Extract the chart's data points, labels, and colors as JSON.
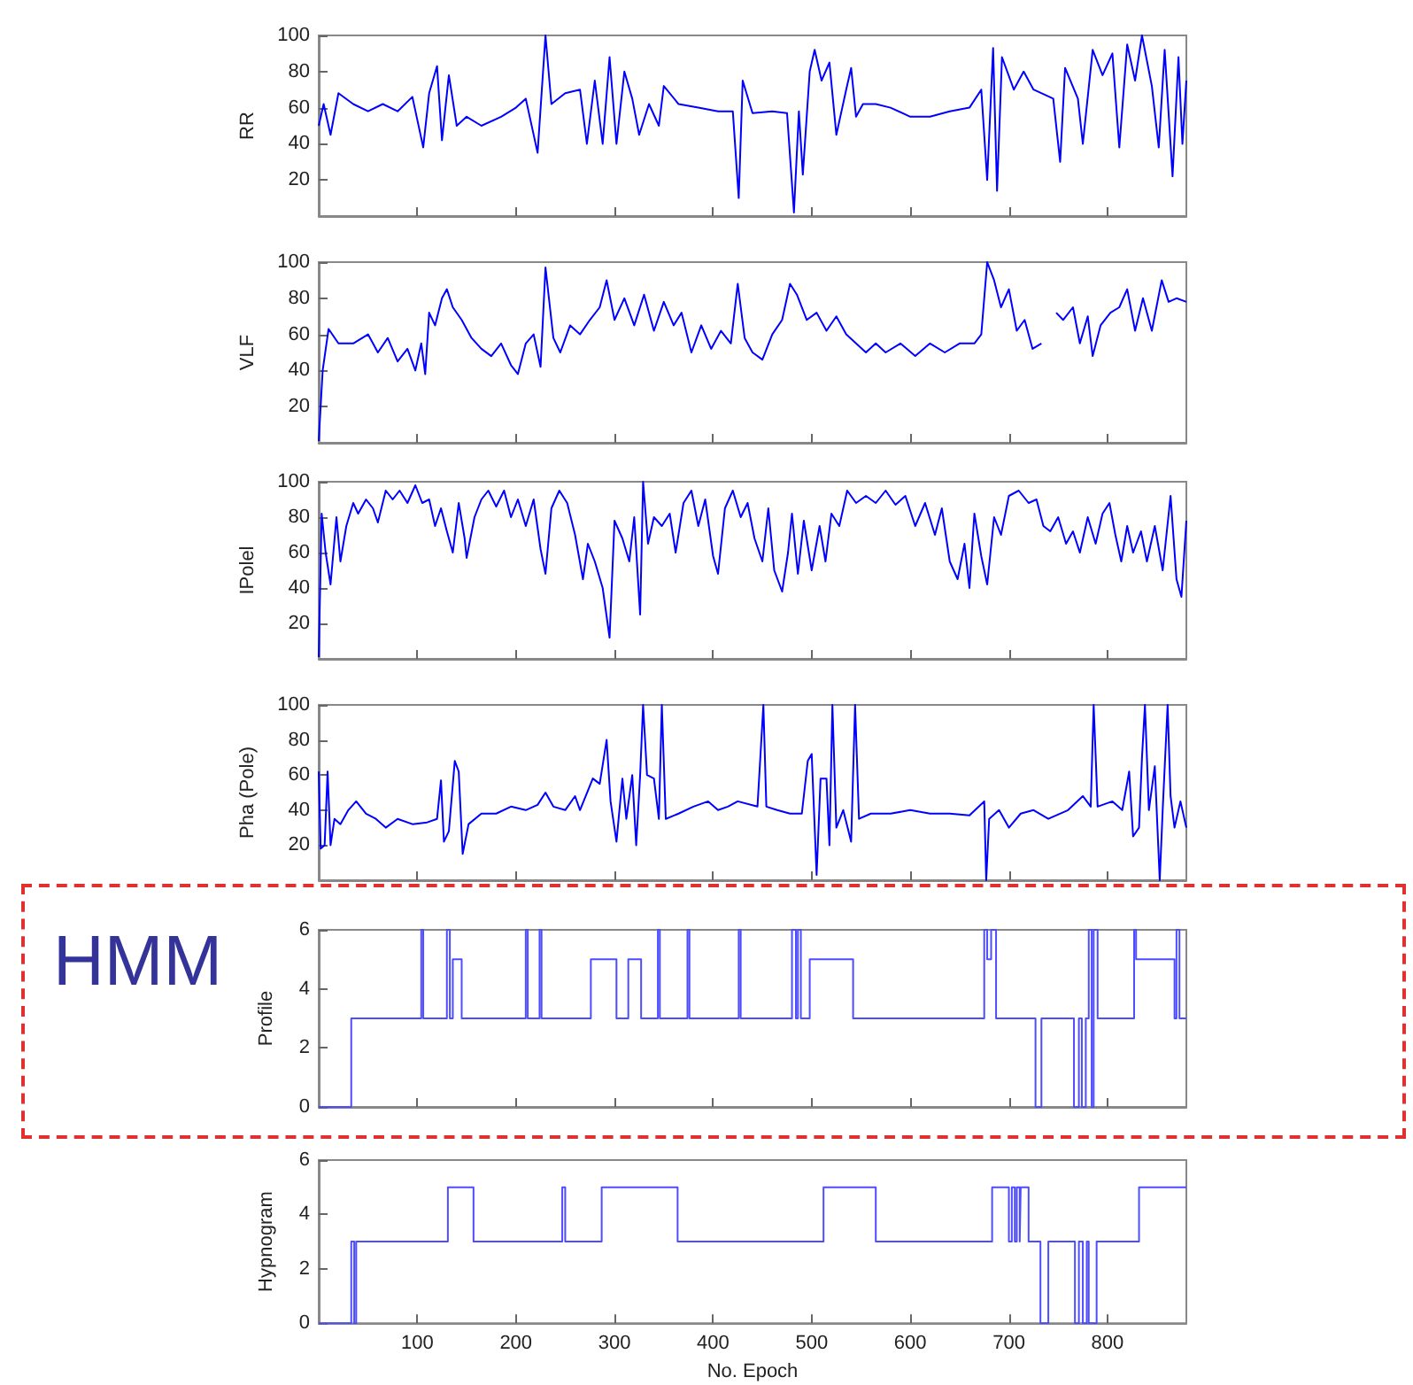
{
  "chart_data": [
    {
      "type": "line",
      "ylabel": "RR",
      "marker": "none",
      "color": "#0000ff",
      "xlim": [
        0,
        880
      ],
      "xticks": [
        100,
        200,
        300,
        400,
        500,
        600,
        700,
        800
      ],
      "ylim": [
        0,
        100
      ],
      "yticks": [
        20,
        40,
        60,
        80,
        100
      ],
      "tick_labels": "y",
      "x": [
        0,
        5,
        12,
        20,
        35,
        50,
        65,
        80,
        95,
        106,
        112,
        120,
        125,
        132,
        140,
        150,
        165,
        185,
        200,
        210,
        222,
        230,
        236,
        250,
        265,
        272,
        280,
        288,
        295,
        302,
        310,
        318,
        325,
        335,
        345,
        350,
        365,
        385,
        405,
        420,
        426,
        430,
        440,
        460,
        475,
        482,
        487,
        491,
        498,
        503,
        510,
        518,
        525,
        535,
        540,
        545,
        552,
        565,
        580,
        600,
        620,
        640,
        660,
        672,
        678,
        684,
        688,
        693,
        705,
        715,
        725,
        745,
        752,
        757,
        770,
        775,
        785,
        795,
        805,
        812,
        820,
        828,
        835,
        845,
        852,
        858,
        866,
        872,
        876,
        880
      ],
      "values": [
        50,
        62,
        45,
        68,
        62,
        58,
        62,
        58,
        66,
        38,
        68,
        83,
        42,
        78,
        50,
        55,
        50,
        55,
        60,
        65,
        35,
        100,
        62,
        68,
        70,
        40,
        75,
        40,
        88,
        40,
        80,
        65,
        45,
        62,
        50,
        72,
        62,
        60,
        58,
        58,
        10,
        75,
        57,
        58,
        57,
        2,
        58,
        23,
        80,
        92,
        75,
        85,
        45,
        70,
        82,
        55,
        62,
        62,
        60,
        55,
        55,
        58,
        60,
        70,
        20,
        93,
        14,
        88,
        70,
        80,
        70,
        65,
        30,
        82,
        65,
        40,
        92,
        78,
        90,
        38,
        95,
        75,
        100,
        72,
        38,
        92,
        22,
        88,
        40,
        75
      ]
    },
    {
      "type": "line",
      "ylabel": "VLF",
      "marker": "none",
      "color": "#0000ff",
      "xlim": [
        0,
        880
      ],
      "xticks": [
        100,
        200,
        300,
        400,
        500,
        600,
        700,
        800
      ],
      "ylim": [
        0,
        100
      ],
      "yticks": [
        20,
        40,
        60,
        80,
        100
      ],
      "tick_labels": "y",
      "x": [
        0,
        4,
        10,
        20,
        35,
        50,
        60,
        70,
        80,
        90,
        98,
        104,
        108,
        112,
        118,
        125,
        130,
        136,
        145,
        155,
        165,
        175,
        185,
        195,
        202,
        210,
        218,
        225,
        230,
        238,
        245,
        255,
        265,
        275,
        285,
        292,
        300,
        310,
        320,
        330,
        340,
        350,
        360,
        368,
        378,
        388,
        398,
        408,
        418,
        425,
        432,
        440,
        450,
        460,
        470,
        478,
        485,
        495,
        505,
        515,
        525,
        535,
        545,
        555,
        565,
        575,
        590,
        605,
        620,
        635,
        650,
        665,
        672,
        678,
        685,
        692,
        700,
        708,
        716,
        724,
        733,
        740,
        748,
        755,
        765,
        772,
        780,
        785,
        793,
        803,
        812,
        820,
        828,
        836,
        845,
        855,
        862,
        870,
        880
      ],
      "values": [
        1,
        40,
        63,
        55,
        55,
        60,
        50,
        58,
        45,
        52,
        40,
        55,
        38,
        72,
        65,
        80,
        85,
        75,
        68,
        58,
        52,
        48,
        55,
        43,
        38,
        55,
        60,
        42,
        97,
        58,
        50,
        65,
        60,
        68,
        75,
        90,
        68,
        80,
        65,
        82,
        62,
        78,
        65,
        72,
        50,
        65,
        52,
        62,
        55,
        88,
        58,
        50,
        46,
        60,
        68,
        88,
        82,
        68,
        72,
        62,
        70,
        60,
        55,
        50,
        55,
        50,
        55,
        48,
        55,
        50,
        55,
        55,
        60,
        100,
        90,
        75,
        85,
        62,
        68,
        52,
        55,
        null,
        72,
        68,
        75,
        55,
        70,
        48,
        65,
        72,
        75,
        85,
        62,
        80,
        62,
        90,
        78,
        80,
        78
      ]
    },
    {
      "type": "line",
      "ylabel": "IPolel",
      "marker": "none",
      "color": "#0000ff",
      "xlim": [
        0,
        880
      ],
      "xticks": [
        100,
        200,
        300,
        400,
        500,
        600,
        700,
        800
      ],
      "ylim": [
        0,
        100
      ],
      "yticks": [
        20,
        40,
        60,
        80,
        100
      ],
      "tick_labels": "y",
      "x": [
        0,
        3,
        7,
        12,
        18,
        22,
        28,
        35,
        40,
        48,
        55,
        60,
        68,
        75,
        82,
        90,
        98,
        105,
        112,
        118,
        124,
        130,
        136,
        142,
        148,
        150,
        158,
        165,
        172,
        180,
        188,
        195,
        202,
        210,
        218,
        225,
        230,
        236,
        244,
        252,
        260,
        268,
        273,
        280,
        288,
        295,
        300,
        308,
        315,
        320,
        326,
        329,
        334,
        340,
        348,
        356,
        362,
        370,
        378,
        385,
        392,
        400,
        405,
        412,
        420,
        428,
        435,
        442,
        450,
        456,
        462,
        470,
        476,
        480,
        486,
        492,
        500,
        508,
        514,
        520,
        528,
        536,
        545,
        555,
        565,
        575,
        585,
        595,
        605,
        615,
        625,
        632,
        640,
        648,
        655,
        660,
        665,
        672,
        678,
        685,
        692,
        700,
        710,
        720,
        728,
        735,
        742,
        750,
        758,
        765,
        772,
        780,
        788,
        795,
        802,
        808,
        814,
        820,
        826,
        834,
        840,
        848,
        856,
        864,
        870,
        875,
        880
      ],
      "values": [
        1,
        82,
        60,
        42,
        80,
        55,
        75,
        88,
        82,
        90,
        85,
        77,
        95,
        90,
        95,
        88,
        98,
        88,
        90,
        75,
        85,
        72,
        60,
        88,
        68,
        57,
        80,
        90,
        95,
        86,
        95,
        80,
        90,
        75,
        90,
        62,
        48,
        85,
        95,
        88,
        70,
        45,
        65,
        55,
        40,
        12,
        78,
        68,
        55,
        80,
        25,
        100,
        65,
        80,
        75,
        82,
        60,
        88,
        95,
        75,
        90,
        58,
        48,
        85,
        95,
        80,
        88,
        68,
        55,
        85,
        50,
        38,
        60,
        82,
        48,
        78,
        50,
        75,
        55,
        82,
        75,
        95,
        88,
        92,
        88,
        95,
        87,
        92,
        75,
        88,
        70,
        85,
        55,
        45,
        65,
        40,
        82,
        58,
        42,
        80,
        70,
        92,
        95,
        88,
        90,
        75,
        72,
        80,
        65,
        72,
        60,
        80,
        65,
        82,
        88,
        70,
        55,
        75,
        60,
        72,
        55,
        75,
        50,
        92,
        45,
        35,
        78
      ]
    },
    {
      "type": "line",
      "ylabel": "Pha (Pole)",
      "marker": "none",
      "color": "#0000ff",
      "xlim": [
        0,
        880
      ],
      "xticks": [
        100,
        200,
        300,
        400,
        500,
        600,
        700,
        800
      ],
      "ylim": [
        0,
        100
      ],
      "yticks": [
        20,
        40,
        60,
        80,
        100
      ],
      "tick_labels": "y",
      "x": [
        0,
        2,
        6,
        9,
        12,
        16,
        22,
        30,
        38,
        48,
        58,
        68,
        80,
        95,
        110,
        120,
        124,
        127,
        132,
        138,
        142,
        146,
        152,
        165,
        180,
        195,
        210,
        222,
        230,
        238,
        250,
        260,
        265,
        278,
        285,
        292,
        296,
        302,
        308,
        312,
        318,
        322,
        326,
        329,
        333,
        340,
        345,
        348,
        352,
        365,
        380,
        395,
        405,
        415,
        425,
        445,
        451,
        454,
        465,
        478,
        490,
        496,
        500,
        505,
        509,
        515,
        518,
        521,
        525,
        532,
        540,
        544,
        548,
        560,
        580,
        600,
        620,
        640,
        660,
        675,
        677,
        680,
        690,
        700,
        712,
        725,
        740,
        760,
        775,
        783,
        786,
        790,
        805,
        815,
        822,
        826,
        832,
        835,
        838,
        842,
        848,
        853,
        856,
        861,
        864,
        868,
        874,
        880
      ],
      "values": [
        62,
        18,
        20,
        62,
        20,
        35,
        32,
        40,
        45,
        38,
        35,
        30,
        35,
        32,
        33,
        35,
        57,
        22,
        28,
        68,
        62,
        15,
        32,
        38,
        38,
        42,
        40,
        43,
        50,
        42,
        40,
        48,
        40,
        58,
        55,
        80,
        45,
        22,
        58,
        35,
        60,
        20,
        60,
        100,
        60,
        58,
        35,
        100,
        35,
        38,
        42,
        45,
        40,
        42,
        45,
        42,
        100,
        42,
        40,
        38,
        38,
        68,
        72,
        3,
        58,
        58,
        20,
        100,
        30,
        40,
        22,
        100,
        35,
        38,
        38,
        40,
        38,
        38,
        37,
        45,
        0,
        35,
        40,
        30,
        38,
        40,
        35,
        40,
        48,
        42,
        100,
        42,
        45,
        40,
        62,
        25,
        30,
        70,
        100,
        40,
        65,
        0,
        40,
        100,
        48,
        30,
        45,
        30
      ]
    },
    {
      "type": "step",
      "ylabel": "Profile",
      "marker": "none",
      "color": "#4d4dff",
      "xlim": [
        0,
        880
      ],
      "xticks": [
        100,
        200,
        300,
        400,
        500,
        600,
        700,
        800
      ],
      "ylim": [
        0,
        6
      ],
      "yticks": [
        0,
        2,
        4,
        6
      ],
      "tick_labels": "y",
      "annotations": [
        "HMM"
      ],
      "x": [
        0,
        33,
        104,
        106,
        130,
        133,
        136,
        145,
        210,
        212,
        224,
        226,
        276,
        302,
        314,
        327,
        344,
        346,
        374,
        376,
        426,
        428,
        480,
        484,
        486,
        489,
        498,
        542,
        675,
        678,
        682,
        687,
        727,
        733,
        766,
        771,
        774,
        778,
        781,
        784,
        786,
        790,
        827,
        829,
        868,
        870,
        873,
        876,
        880
      ],
      "values": [
        0,
        3,
        6,
        3,
        6,
        3,
        5,
        3,
        6,
        3,
        6,
        3,
        5,
        3,
        5,
        3,
        6,
        3,
        6,
        3,
        6,
        3,
        6,
        3,
        6,
        3,
        5,
        3,
        6,
        5,
        6,
        3,
        0,
        3,
        0,
        3,
        0,
        3,
        6,
        0,
        6,
        3,
        6,
        5,
        3,
        6,
        3,
        3,
        3
      ]
    },
    {
      "type": "step",
      "ylabel": "Hypnogram",
      "xlabel": "No. Epoch",
      "marker": "none",
      "color": "#4d4dff",
      "xlim": [
        0,
        880
      ],
      "xticks": [
        100,
        200,
        300,
        400,
        500,
        600,
        700,
        800
      ],
      "ylim": [
        0,
        6
      ],
      "yticks": [
        0,
        2,
        4,
        6
      ],
      "x": [
        0,
        33,
        36,
        38,
        131,
        157,
        247,
        250,
        287,
        364,
        512,
        565,
        683,
        700,
        703,
        706,
        708,
        711,
        712,
        720,
        732,
        740,
        767,
        771,
        775,
        779,
        781,
        789,
        832,
        880
      ],
      "values": [
        0,
        3,
        0,
        3,
        5,
        3,
        5,
        3,
        5,
        3,
        5,
        3,
        5,
        3,
        5,
        3,
        5,
        3,
        5,
        3,
        0,
        3,
        0,
        3,
        0,
        3,
        0,
        3,
        5,
        5
      ]
    }
  ]
}
